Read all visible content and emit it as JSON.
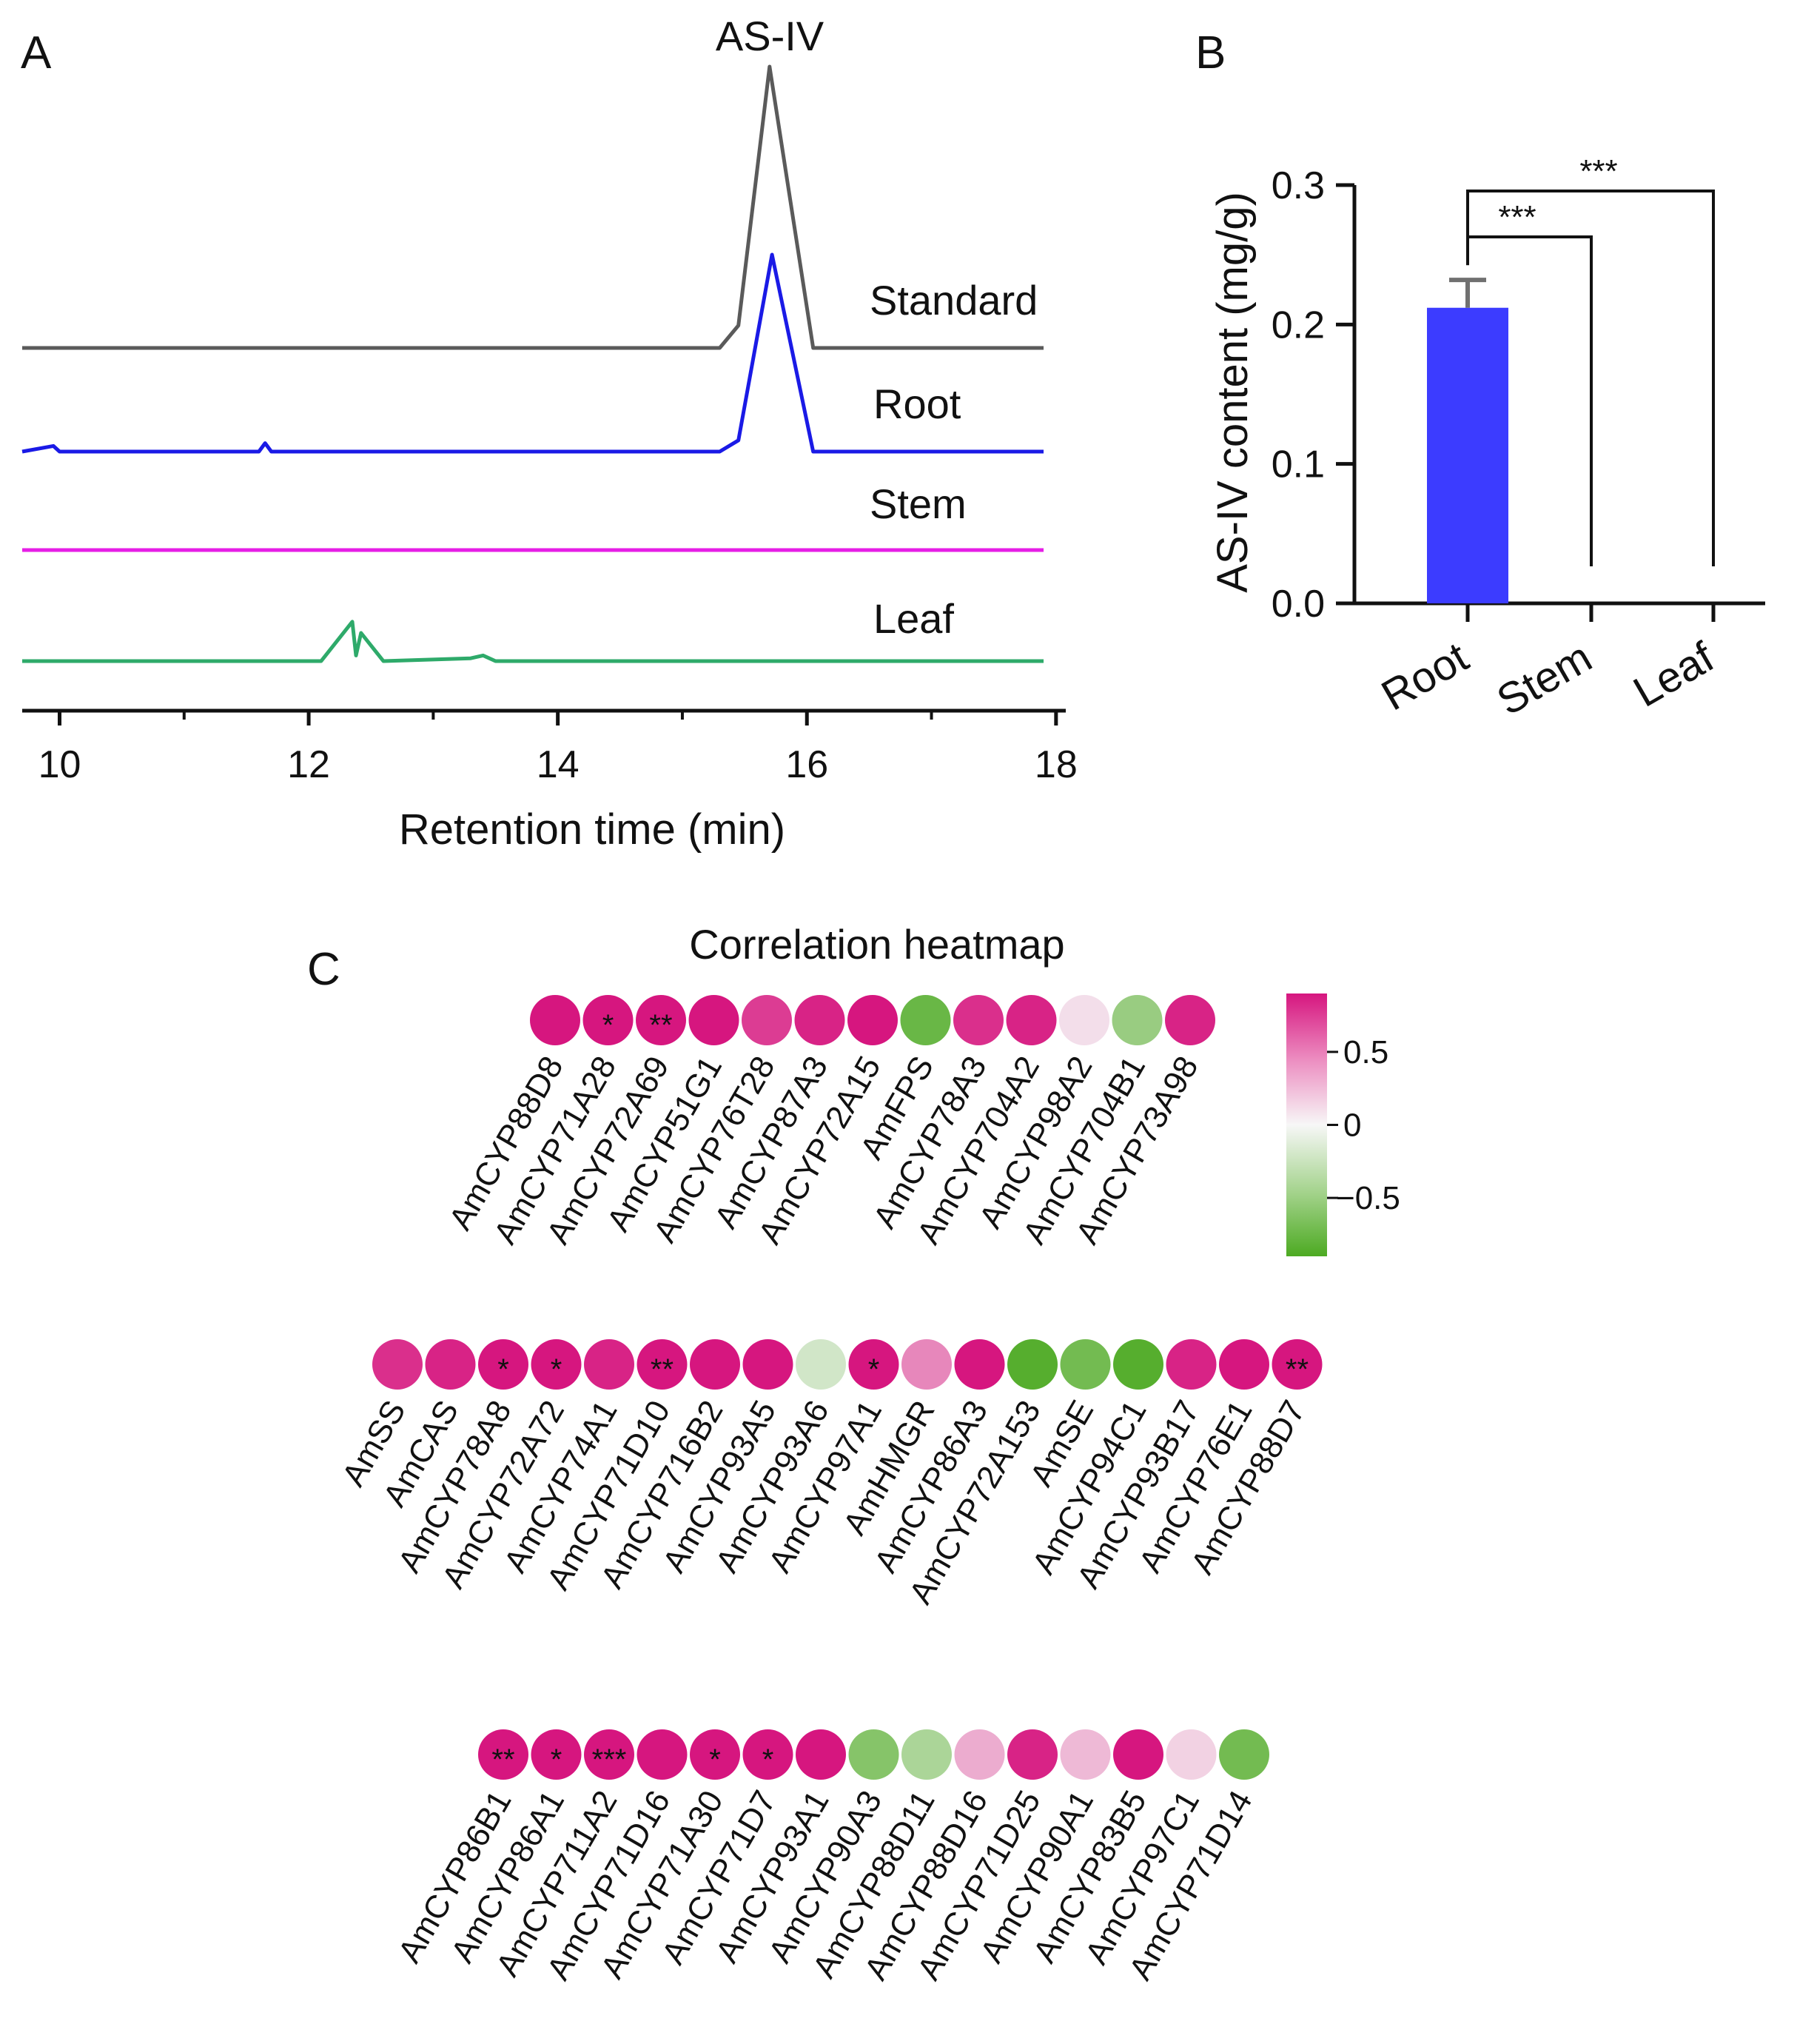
{
  "panels": {
    "A": "A",
    "B": "B",
    "C": "C"
  },
  "colors": {
    "standard": "#5a5a5a",
    "root": "#1a1ae6",
    "stem": "#e61ee6",
    "leaf": "#2eaa6a",
    "bar": "#3c3cff",
    "errorbar": "#707070",
    "heat_pos": "#d6167f",
    "heat_zero": "#f7f7f7",
    "heat_neg": "#4daa22"
  },
  "chart_data": [
    {
      "id": "A",
      "type": "line",
      "title": "",
      "xlabel": "Retention time (min)",
      "ylabel": "",
      "xlim": [
        9.7,
        17.9
      ],
      "x_ticks": [
        "10",
        "12",
        "14",
        "16",
        "18"
      ],
      "peak_label": "AS-IV",
      "peak_x": 15.7,
      "series": [
        {
          "name": "Standard",
          "color_key": "standard",
          "peak_x": 15.7,
          "peak_height": 1.0,
          "baseline_noise": 0.01,
          "points": [
            [
              9.7,
              0
            ],
            [
              15.3,
              0
            ],
            [
              15.45,
              0.08
            ],
            [
              15.7,
              1.0
            ],
            [
              16.05,
              0
            ],
            [
              17.9,
              0
            ]
          ]
        },
        {
          "name": "Root",
          "color_key": "root",
          "peak_x": 15.72,
          "peak_height": 0.7,
          "points": [
            [
              9.7,
              0
            ],
            [
              9.95,
              0.02
            ],
            [
              10.0,
              0
            ],
            [
              11.6,
              0
            ],
            [
              11.65,
              0.03
            ],
            [
              11.7,
              0
            ],
            [
              15.3,
              0
            ],
            [
              15.45,
              0.04
            ],
            [
              15.72,
              0.7
            ],
            [
              16.05,
              0
            ],
            [
              17.9,
              0
            ]
          ]
        },
        {
          "name": "Stem",
          "color_key": "stem",
          "points": [
            [
              9.7,
              0
            ],
            [
              17.9,
              0
            ]
          ]
        },
        {
          "name": "Leaf",
          "color_key": "leaf",
          "points": [
            [
              9.7,
              0
            ],
            [
              12.1,
              0
            ],
            [
              12.35,
              0.14
            ],
            [
              12.38,
              0.02
            ],
            [
              12.42,
              0.1
            ],
            [
              12.6,
              0
            ],
            [
              13.3,
              0.01
            ],
            [
              13.4,
              0.02
            ],
            [
              13.5,
              0
            ],
            [
              17.9,
              0
            ]
          ]
        }
      ]
    },
    {
      "id": "B",
      "type": "bar",
      "title": "",
      "xlabel": "",
      "ylabel": "AS-IV content (mg/g)",
      "ylim": [
        0.0,
        0.3
      ],
      "y_ticks": [
        "0.0",
        "0.1",
        "0.2",
        "0.3"
      ],
      "categories": [
        "Root",
        "Stem",
        "Leaf"
      ],
      "values": [
        0.212,
        0.0,
        0.0
      ],
      "errors": [
        0.02,
        0.0,
        0.0
      ],
      "significance": [
        {
          "from": "Root",
          "to": "Stem",
          "label": "***"
        },
        {
          "from": "Root",
          "to": "Leaf",
          "label": "***"
        }
      ]
    },
    {
      "id": "C",
      "type": "heatmap",
      "title": "Correlation heatmap",
      "colorbar": {
        "range": [
          -0.9,
          0.9
        ],
        "ticks": [
          "0.5",
          "0",
          "−0.5"
        ],
        "tick_values": [
          0.5,
          0.0,
          -0.5
        ]
      },
      "rows": [
        {
          "genes": [
            "AmCYP88D8",
            "AmCYP71A28",
            "AmCYP72A69",
            "AmCYP51G1",
            "AmCYP76T28",
            "AmCYP87A3",
            "AmCYP72A15",
            "AmFPS",
            "AmCYP78A3",
            "AmCYP704A2",
            "AmCYP98A2",
            "AmCYP704B1",
            "AmCYP73A98"
          ],
          "values": [
            0.9,
            0.9,
            0.9,
            0.9,
            0.75,
            0.85,
            0.9,
            -0.75,
            0.8,
            0.85,
            0.1,
            -0.5,
            0.85
          ],
          "stars": [
            "",
            "*",
            "**",
            "",
            "",
            "",
            "",
            "",
            "",
            "",
            "",
            "",
            ""
          ]
        },
        {
          "genes": [
            "AmSS",
            "AmCAS",
            "AmCYP78A8",
            "AmCYP72A72",
            "AmCYP74A1",
            "AmCYP71D10",
            "AmCYP716B2",
            "AmCYP93A5",
            "AmCYP93A6",
            "AmCYP97A1",
            "AmHMGR",
            "AmCYP86A3",
            "AmCYP72A153",
            "AmSE",
            "AmCYP94C1",
            "AmCYP93B17",
            "AmCYP76E1",
            "AmCYP88D7"
          ],
          "values": [
            0.8,
            0.85,
            0.9,
            0.9,
            0.85,
            0.9,
            0.9,
            0.9,
            -0.2,
            0.9,
            0.45,
            0.9,
            -0.85,
            -0.7,
            -0.85,
            0.85,
            0.9,
            0.9
          ],
          "stars": [
            "",
            "",
            "*",
            "*",
            "",
            "**",
            "",
            "",
            "",
            "*",
            "",
            "",
            "",
            "",
            "",
            "",
            "",
            "**"
          ]
        },
        {
          "genes": [
            "AmCYP86B1",
            "AmCYP86A1",
            "AmCYP711A2",
            "AmCYP71D16",
            "AmCYP71A30",
            "AmCYP71D7",
            "AmCYP93A1",
            "AmCYP90A3",
            "AmCYP88D11",
            "AmCYP88D16",
            "AmCYP71D25",
            "AmCYP90A1",
            "AmCYP83B5",
            "AmCYP97C1",
            "AmCYP71D14"
          ],
          "values": [
            0.9,
            0.9,
            0.9,
            0.9,
            0.9,
            0.9,
            0.9,
            -0.6,
            -0.4,
            0.3,
            0.85,
            0.25,
            0.9,
            0.15,
            -0.7
          ],
          "stars": [
            "**",
            "*",
            "***",
            "",
            "*",
            "*",
            "",
            "",
            "",
            "",
            "",
            "",
            "",
            "",
            ""
          ]
        }
      ]
    }
  ]
}
